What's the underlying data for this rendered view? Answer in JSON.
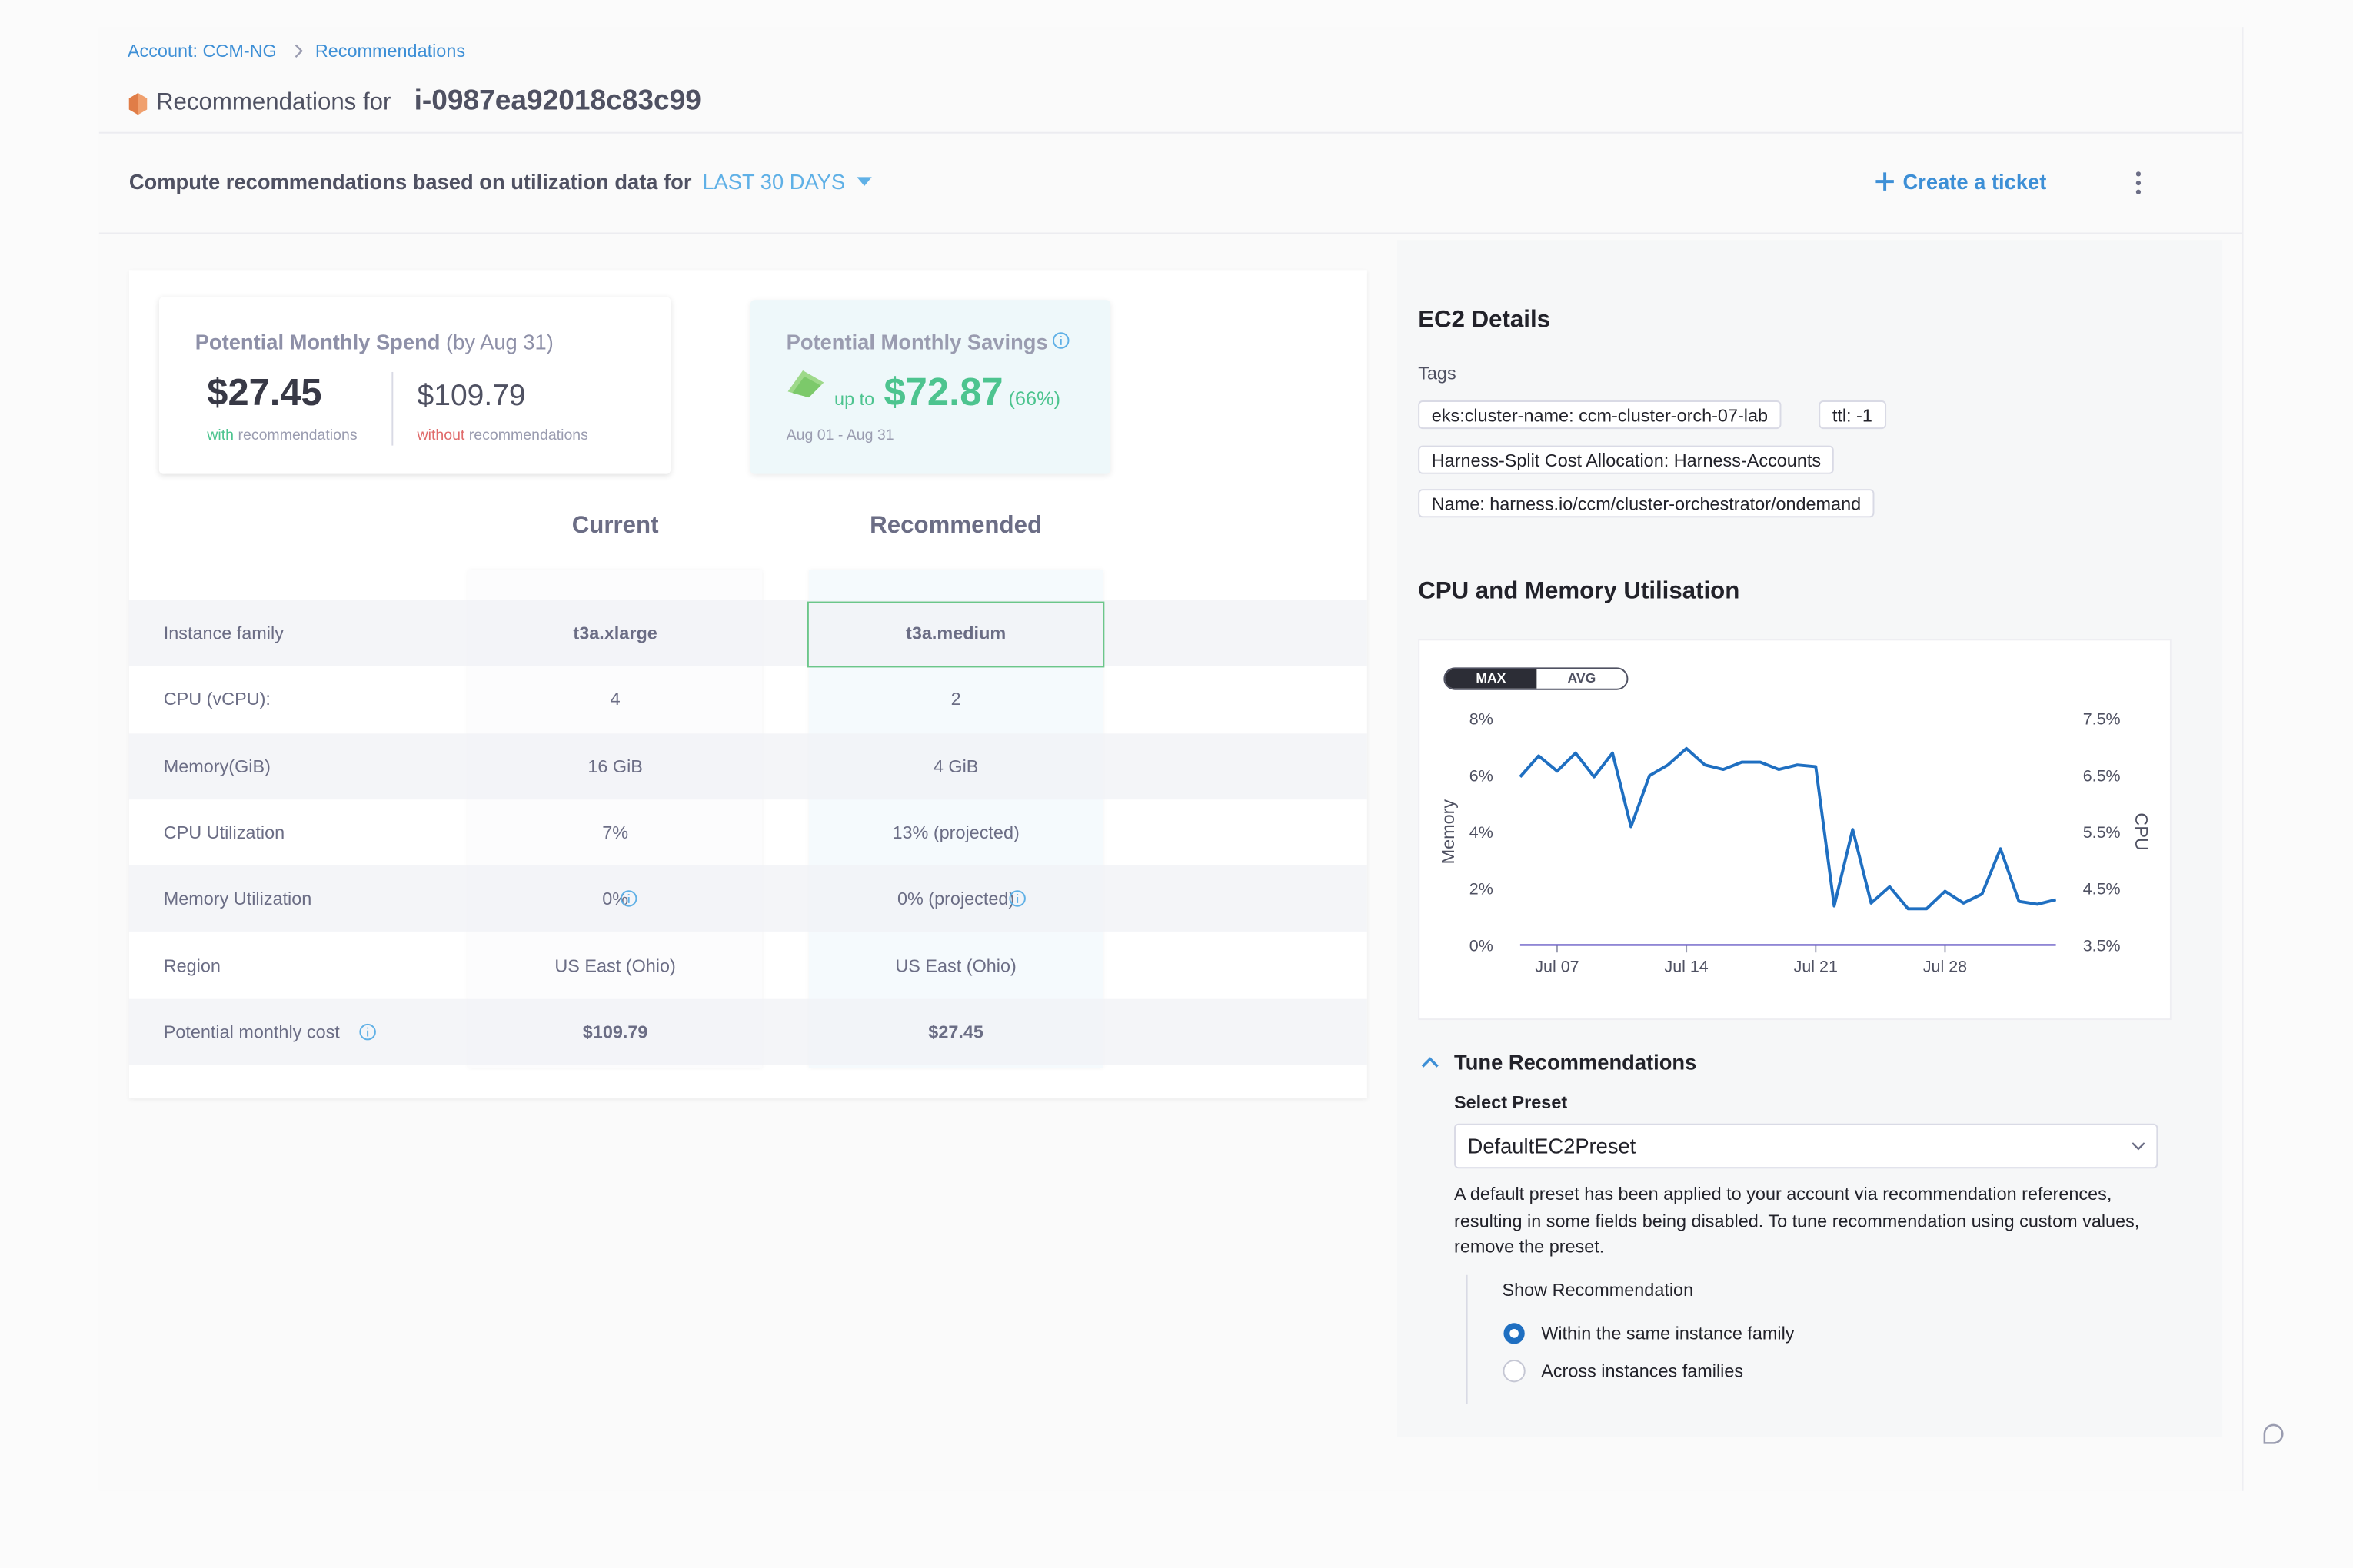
{
  "breadcrumbs": [
    "Account: CCM-NG",
    "Recommendations"
  ],
  "header": {
    "title_prefix": "Recommendations for",
    "instance": "i-0987ea92018c83c99"
  },
  "toolbar": {
    "label": "Compute recommendations based on utilization data for",
    "period": "LAST 30 DAYS",
    "create_ticket": "Create a ticket"
  },
  "spend_card": {
    "title": "Potential Monthly Spend",
    "title_note": "(by Aug 31)",
    "with_value": "$27.45",
    "with_prefix": "with",
    "with_label": "recommendations",
    "without_value": "$109.79",
    "without_prefix": "without",
    "without_label": "recommendations"
  },
  "savings_card": {
    "title": "Potential Monthly Savings",
    "prefix": "up to",
    "amount": "$72.87",
    "percent": "(66%)",
    "range": "Aug 01 - Aug 31"
  },
  "table": {
    "columns": [
      "Current",
      "Recommended"
    ],
    "rows": [
      [
        "Instance family",
        "t3a.xlarge",
        "t3a.medium"
      ],
      [
        "CPU (vCPU):",
        "4",
        "2"
      ],
      [
        "Memory(GiB)",
        "16 GiB",
        "4 GiB"
      ],
      [
        "CPU Utilization",
        "7%",
        "13% (projected)"
      ],
      [
        "Memory Utilization",
        "0%",
        "0% (projected)"
      ],
      [
        "Region",
        "US East (Ohio)",
        "US East (Ohio)"
      ],
      [
        "Potential monthly cost",
        "$109.79",
        "$27.45"
      ]
    ]
  },
  "ec2": {
    "title": "EC2 Details",
    "tags_label": "Tags",
    "tags": [
      "eks:cluster-name: ccm-cluster-orch-07-lab",
      "ttl: -1",
      "Harness-Split Cost Allocation: Harness-Accounts",
      "Name: harness.io/ccm/cluster-orchestrator/ondemand"
    ]
  },
  "utilisation": {
    "title": "CPU and Memory Utilisation",
    "toggle": [
      "MAX",
      "AVG"
    ]
  },
  "chart_data": {
    "type": "line",
    "y_label": "Memory",
    "y2_label": "CPU",
    "x": [
      "Jul 05",
      "Jul 06",
      "Jul 07",
      "Jul 08",
      "Jul 09",
      "Jul 10",
      "Jul 11",
      "Jul 12",
      "Jul 13",
      "Jul 14",
      "Jul 15",
      "Jul 16",
      "Jul 17",
      "Jul 18",
      "Jul 19",
      "Jul 20",
      "Jul 21",
      "Jul 22",
      "Jul 23",
      "Jul 24",
      "Jul 25",
      "Jul 26",
      "Jul 27",
      "Jul 28",
      "Jul 29",
      "Jul 30",
      "Jul 31",
      "Aug 01",
      "Aug 02",
      "Aug 03"
    ],
    "xticks": [
      "Jul 07",
      "Jul 14",
      "Jul 21",
      "Jul 28"
    ],
    "ylim": [
      0,
      8
    ],
    "yticks": [
      {
        "value": 0,
        "label": "0%"
      },
      {
        "value": 2,
        "label": "2%"
      },
      {
        "value": 4,
        "label": "4%"
      },
      {
        "value": 6,
        "label": "6%"
      },
      {
        "value": 8,
        "label": "8%"
      }
    ],
    "y2lim": [
      3.5,
      7.5
    ],
    "y2ticks": [
      {
        "value": 3.5,
        "label": "3.5%"
      },
      {
        "value": 4.5,
        "label": "4.5%"
      },
      {
        "value": 5.5,
        "label": "5.5%"
      },
      {
        "value": 6.5,
        "label": "6.5%"
      },
      {
        "value": 7.5,
        "label": "7.5%"
      }
    ],
    "series": [
      {
        "color": "#6c5fc7",
        "values": [
          0,
          0,
          0,
          0,
          0,
          0,
          0,
          0,
          0,
          0,
          0,
          0,
          0,
          0,
          0,
          0,
          0,
          0,
          0,
          0,
          0,
          0,
          0,
          0,
          0,
          0,
          0,
          0,
          0,
          0
        ]
      },
      {
        "color": "#1f6fc1",
        "axis": "y2",
        "values": [
          6.47,
          6.84,
          6.57,
          6.89,
          6.47,
          6.89,
          5.59,
          6.49,
          6.68,
          6.97,
          6.68,
          6.6,
          6.73,
          6.73,
          6.6,
          6.68,
          6.65,
          4.19,
          5.54,
          4.24,
          4.53,
          4.14,
          4.14,
          4.45,
          4.24,
          4.4,
          5.2,
          4.27,
          4.22,
          4.3
        ]
      }
    ]
  },
  "tune": {
    "title": "Tune Recommendations",
    "select_label": "Select Preset",
    "preset": "DefaultEC2Preset",
    "description": "A default preset has been applied to your account via recommendation references, resulting in some fields being disabled. To tune recommendation using custom values, remove the preset.",
    "show_label": "Show Recommendation",
    "options": [
      "Within the same instance family",
      "Across instances families"
    ]
  }
}
